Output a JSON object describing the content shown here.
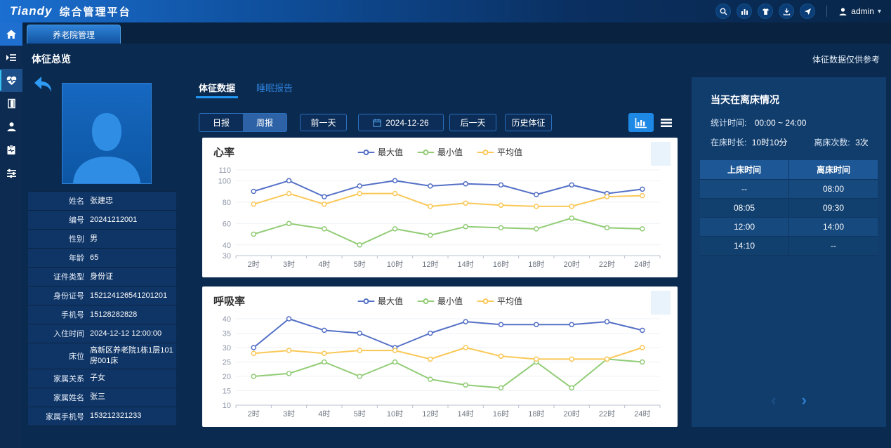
{
  "header": {
    "logo": "Tiandy",
    "title": "综合管理平台",
    "user": "admin",
    "icons": [
      "search-icon",
      "bar-chart-icon",
      "shirt-icon",
      "download-icon",
      "send-icon"
    ]
  },
  "tab": {
    "main": "养老院管理"
  },
  "page": {
    "title": "体征总览",
    "disclaimer": "体征数据仅供参考"
  },
  "sidebar": {
    "items": [
      "home-icon",
      "list-icon",
      "heart-pulse-icon",
      "door-icon",
      "person-icon",
      "clipboard-icon",
      "sliders-icon"
    ],
    "active": "heart-pulse-icon"
  },
  "patient": {
    "rows": [
      {
        "label": "姓名",
        "value": "张建忠"
      },
      {
        "label": "编号",
        "value": "20241212001"
      },
      {
        "label": "性别",
        "value": "男"
      },
      {
        "label": "年龄",
        "value": "65"
      },
      {
        "label": "证件类型",
        "value": "身份证"
      },
      {
        "label": "身份证号",
        "value": "152124126541201201"
      },
      {
        "label": "手机号",
        "value": "15128282828"
      },
      {
        "label": "入住时间",
        "value": "2024-12-12 12:00:00"
      },
      {
        "label": "床位",
        "value": "高新区养老院1栋1层101房001床"
      },
      {
        "label": "家属关系",
        "value": "子女"
      },
      {
        "label": "家属姓名",
        "value": "张三"
      },
      {
        "label": "家属手机号",
        "value": "153212321233"
      }
    ]
  },
  "content_tabs": [
    {
      "label": "体征数据",
      "active": true
    },
    {
      "label": "睡眠报告",
      "active": false
    }
  ],
  "controls": {
    "daily": "日报",
    "weekly": "周报",
    "prev": "前一天",
    "date": "2024-12-26",
    "next": "后一天",
    "history": "历史体征"
  },
  "chart_data": [
    {
      "type": "line",
      "title": "心率",
      "categories": [
        "2时",
        "3时",
        "4时",
        "5时",
        "10时",
        "12时",
        "14时",
        "16时",
        "18时",
        "20时",
        "22时",
        "24时"
      ],
      "series": [
        {
          "name": "最大值",
          "color": "#5470c6",
          "values": [
            90,
            100,
            85,
            95,
            100,
            95,
            97,
            96,
            87,
            96,
            88,
            92
          ]
        },
        {
          "name": "最小值",
          "color": "#91cc75",
          "values": [
            50,
            60,
            55,
            40,
            55,
            49,
            57,
            56,
            55,
            65,
            56,
            55
          ]
        },
        {
          "name": "平均值",
          "color": "#fac858",
          "values": [
            78,
            88,
            78,
            88,
            88,
            76,
            79,
            77,
            76,
            76,
            85,
            86
          ]
        }
      ],
      "ylim": [
        30,
        110
      ],
      "yticks": [
        30,
        40,
        60,
        80,
        100,
        110
      ],
      "legend_position": "top",
      "grid": true
    },
    {
      "type": "line",
      "title": "呼吸率",
      "categories": [
        "2时",
        "3时",
        "4时",
        "5时",
        "10时",
        "12时",
        "14时",
        "16时",
        "18时",
        "20时",
        "22时",
        "24时"
      ],
      "series": [
        {
          "name": "最大值",
          "color": "#5470c6",
          "values": [
            30,
            40,
            36,
            35,
            30,
            35,
            39,
            38,
            38,
            38,
            39,
            36
          ]
        },
        {
          "name": "最小值",
          "color": "#91cc75",
          "values": [
            20,
            21,
            25,
            20,
            25,
            19,
            17,
            16,
            25,
            16,
            26,
            25
          ]
        },
        {
          "name": "平均值",
          "color": "#fac858",
          "values": [
            28,
            29,
            28,
            29,
            29,
            26,
            30,
            27,
            26,
            26,
            26,
            30
          ]
        }
      ],
      "ylim": [
        10,
        40
      ],
      "yticks": [
        10,
        15,
        20,
        25,
        30,
        35,
        40
      ],
      "legend_position": "top",
      "grid": true
    }
  ],
  "bed": {
    "title": "当天在离床情况",
    "stat_time_label": "统计时间:",
    "stat_time": "00:00 ~ 24:00",
    "in_bed_label": "在床时长:",
    "in_bed": "10时10分",
    "leave_label": "离床次数:",
    "leave": "3次",
    "table": {
      "headers": [
        "上床时间",
        "离床时间"
      ],
      "rows": [
        [
          "--",
          "08:00"
        ],
        [
          "08:05",
          "09:30"
        ],
        [
          "12:00",
          "14:00"
        ],
        [
          "14:10",
          "--"
        ]
      ]
    }
  },
  "colors": {
    "accent": "#1e88e5",
    "series_max": "#5470c6",
    "series_min": "#91cc75",
    "series_avg": "#fac858",
    "panel": "#113d6d",
    "background": "#0a2a50"
  }
}
